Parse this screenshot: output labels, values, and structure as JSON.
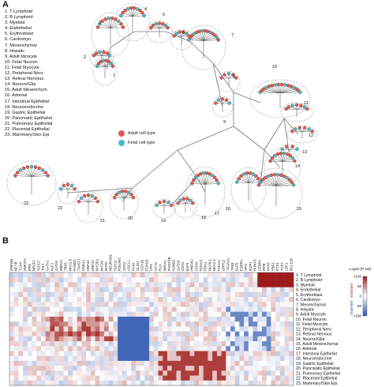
{
  "panel_a_label": "A",
  "panel_b_label": "B",
  "cell_types": [
    "1. T Lymphoid",
    "2. B Lymphoid",
    "3. Myeloid",
    "4. Endothelial",
    "5. Erythroblast",
    "6. Cardiomyo",
    "7. Mesenchymal",
    "8. Hepatic",
    "9. Adult Myocyte",
    "10. Fetal Neuron",
    "11. Fetal Myocyte",
    "12. Peripheral Nerv.",
    "13. Retinal Nervous",
    "14. Neuron/Glia",
    "15. Adult Mesenchym.",
    "16. Adrenal",
    "17. Intestinal Epithelial",
    "18. Neuroendocrine",
    "19. Gastric Epithelial",
    "20. Pancreatic Epithelial",
    "21. Pulmonary Epithelial",
    "22. Placental Epithelial",
    "23. Mammary/Skin Epi."
  ],
  "cluster_numbers": [
    "1",
    "2",
    "3",
    "4",
    "5",
    "6",
    "7",
    "8",
    "9",
    "10",
    "11",
    "12",
    "13",
    "14",
    "15",
    "16",
    "17",
    "18",
    "19",
    "20",
    "21",
    "22",
    "23"
  ],
  "legend": {
    "adult": {
      "label": "Adult cell type",
      "color": "#e05a4f"
    },
    "fetal": {
      "label": "Fetal cell type",
      "color": "#4bb8c4"
    }
  },
  "heatmap": {
    "genes": [
      "ZNF354",
      "NFYB",
      "TCF4",
      "ZNF37A",
      "ERG",
      "NR2F2",
      "SOX17",
      "TAL1",
      "GATA1",
      "KLF1",
      "GATA2",
      "MEF2C",
      "TBX5",
      "NKX2-5",
      "HAND2",
      "TWIST1",
      "PRRX1",
      "HNF4A",
      "HNF1A",
      "MYOD1",
      "MYOG",
      "MYF5",
      "NEUROD1",
      "SOX11",
      "POU3F2",
      "SOX2",
      "ASCL1",
      "PAX6",
      "OLIG2",
      "SOX10",
      "FOXD3",
      "CRX",
      "OTX2",
      "RAX",
      "NR5A1",
      "PHOX2B",
      "HAND1",
      "GATA3",
      "CDX2",
      "ELF3",
      "HNF4G",
      "SOX9",
      "FOXA2",
      "PDX1",
      "NKX6-1",
      "NKX2-1",
      "FOXA1",
      "GRHL2",
      "TFAP2A",
      "TP63",
      "KLF5",
      "ESRRA",
      "SPI1",
      "IKZF1",
      "RUNX3",
      "CEBPA",
      "IRF8",
      "PAX5",
      "EBF1",
      "ETS1",
      "TCF7",
      "LEF1",
      "BCL11B"
    ],
    "rows": [
      "1. T Lymphoid",
      "2. B Lymphoid",
      "3. Myeloid",
      "4. Endothelial",
      "5. Erythroblast",
      "6. Cardiomyo",
      "7. Mesenchymal",
      "8. Hepatic",
      "9. Adult Myocyte",
      "10. Fetal Neuron",
      "11. Fetal Myocyte",
      "12. Peripheral Nerv.",
      "13. Retinal Nervous",
      "14. Neuron/Glia",
      "15. Adult Mesenchymal",
      "16. Adrenal",
      "17. Intestinal Epithelial",
      "18. Neuroendocrine",
      "19. Gastric Epithelial",
      "20. Pancreatic Epithelial",
      "21. Pulmonary Epithelial",
      "22. Placental Epithelial",
      "23. Mammary/Skin Epi."
    ],
    "scale_title": "-Log10 (P-val)",
    "scale_ticks": [
      ">100",
      "50",
      "0",
      "50",
      ">100"
    ],
    "enriched_label": "Enriched",
    "depleted_label": "Depleted",
    "colors": {
      "high": "#9e1b1b",
      "mid": "#ffffff",
      "low": "#2c55b0"
    }
  }
}
